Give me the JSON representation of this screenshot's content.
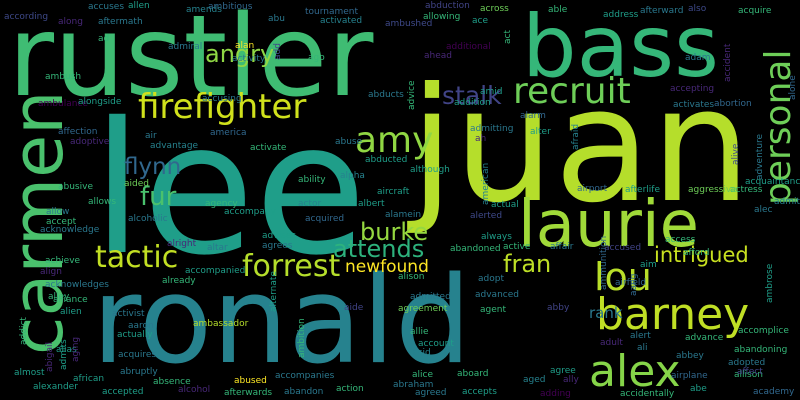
{
  "title_words": [
    {
      "text": "rustler",
      "color": "#3fbc73"
    },
    {
      "text": "bass",
      "color": "#35b779"
    },
    {
      "text": "lee",
      "color": "#1f9e89"
    },
    {
      "text": "juan",
      "color": "#b5de2b"
    },
    {
      "text": "ronald",
      "color": "#26828e"
    },
    {
      "text": "carmen",
      "color": "#4ac16d"
    },
    {
      "text": "laurie",
      "color": "#a0da39"
    },
    {
      "text": "firefighter",
      "color": "#d0e11c"
    },
    {
      "text": "recruit",
      "color": "#6ece58"
    },
    {
      "text": "personal",
      "color": "#6ece58"
    },
    {
      "text": "amy",
      "color": "#90d743"
    },
    {
      "text": "stalk",
      "color": "#414487"
    },
    {
      "text": "angry",
      "color": "#8fd744"
    },
    {
      "text": "flynn",
      "color": "#31688e"
    },
    {
      "text": "fur",
      "color": "#4ac16d"
    },
    {
      "text": "tactic",
      "color": "#c2df23"
    },
    {
      "text": "forrest",
      "color": "#b5de2b"
    },
    {
      "text": "burke",
      "color": "#95d840"
    },
    {
      "text": "attends",
      "color": "#2db27d"
    },
    {
      "text": "newfound",
      "color": "#fde725"
    },
    {
      "text": "fran",
      "color": "#bddf26"
    },
    {
      "text": "lou",
      "color": "#b8de29"
    },
    {
      "text": "intrigued",
      "color": "#c8e020"
    },
    {
      "text": "barney",
      "color": "#c0df25"
    },
    {
      "text": "alex",
      "color": "#86d549"
    },
    {
      "text": "rank",
      "color": "#2a788e"
    },
    {
      "text": "according",
      "color": "#3e4989"
    },
    {
      "text": "along",
      "color": "#482878"
    },
    {
      "text": "accuses",
      "color": "#2a788e"
    },
    {
      "text": "allen",
      "color": "#1f9e89"
    },
    {
      "text": "aftermath",
      "color": "#2a788e"
    },
    {
      "text": "ad",
      "color": "#35b779"
    },
    {
      "text": "ambitious",
      "color": "#31688e"
    },
    {
      "text": "amends",
      "color": "#26828e"
    },
    {
      "text": "abu",
      "color": "#2a788e"
    },
    {
      "text": "tournament",
      "color": "#31688e"
    },
    {
      "text": "activated",
      "color": "#26828e"
    },
    {
      "text": "ambushed",
      "color": "#3e4989"
    },
    {
      "text": "abduction",
      "color": "#414487"
    },
    {
      "text": "allowing",
      "color": "#35b779"
    },
    {
      "text": "across",
      "color": "#6ece58"
    },
    {
      "text": "ace",
      "color": "#1f9e89"
    },
    {
      "text": "act",
      "color": "#35b779"
    },
    {
      "text": "able",
      "color": "#35b779"
    },
    {
      "text": "address",
      "color": "#1f9e89"
    },
    {
      "text": "afterward",
      "color": "#2a788e"
    },
    {
      "text": "also",
      "color": "#3e4989"
    },
    {
      "text": "acquire",
      "color": "#35b779"
    },
    {
      "text": "adam",
      "color": "#2a788e"
    },
    {
      "text": "ahead",
      "color": "#482878"
    },
    {
      "text": "additional",
      "color": "#440154"
    },
    {
      "text": "abducts",
      "color": "#2a788e"
    },
    {
      "text": "advice",
      "color": "#35b779"
    },
    {
      "text": "amid",
      "color": "#1f9e89"
    },
    {
      "text": "addition",
      "color": "#1f9e89"
    },
    {
      "text": "accepting",
      "color": "#482878"
    },
    {
      "text": "abortion",
      "color": "#31688e"
    },
    {
      "text": "activates",
      "color": "#2a788e"
    },
    {
      "text": "alone",
      "color": "#31688e"
    },
    {
      "text": "admiral",
      "color": "#2a788e"
    },
    {
      "text": "alan",
      "color": "#fde725"
    },
    {
      "text": "ago",
      "color": "#35b779"
    },
    {
      "text": "activity",
      "color": "#2a788e"
    },
    {
      "text": "add",
      "color": "#3e4989"
    },
    {
      "text": "ambush",
      "color": "#35b779"
    },
    {
      "text": "ambulance",
      "color": "#440154"
    },
    {
      "text": "alongside",
      "color": "#1f9e89"
    },
    {
      "text": "accusing",
      "color": "#2a788e"
    },
    {
      "text": "air",
      "color": "#2a788e"
    },
    {
      "text": "america",
      "color": "#31688e"
    },
    {
      "text": "advantage",
      "color": "#26828e"
    },
    {
      "text": "adoptive",
      "color": "#482878"
    },
    {
      "text": "affection",
      "color": "#31688e"
    },
    {
      "text": "activate",
      "color": "#35b779"
    },
    {
      "text": "abuse",
      "color": "#2a788e"
    },
    {
      "text": "abducted",
      "color": "#1f9e89"
    },
    {
      "text": "alpha",
      "color": "#26828e"
    },
    {
      "text": "although",
      "color": "#1f9e89"
    },
    {
      "text": "admitting",
      "color": "#2a788e"
    },
    {
      "text": "ah",
      "color": "#482878"
    },
    {
      "text": "alarm",
      "color": "#31688e"
    },
    {
      "text": "alter",
      "color": "#1f9e89"
    },
    {
      "text": "afraid",
      "color": "#26828e"
    },
    {
      "text": "alive",
      "color": "#3e4989"
    },
    {
      "text": "adventure",
      "color": "#2a788e"
    },
    {
      "text": "acquaintance",
      "color": "#1f9e89"
    },
    {
      "text": "actress",
      "color": "#35b779"
    },
    {
      "text": "aggressive",
      "color": "#6ece58"
    },
    {
      "text": "afterlife",
      "color": "#1f9e89"
    },
    {
      "text": "airport",
      "color": "#31688e"
    },
    {
      "text": "american",
      "color": "#26828e"
    },
    {
      "text": "actual",
      "color": "#1f9e89"
    },
    {
      "text": "aircraft",
      "color": "#1f9e89"
    },
    {
      "text": "albert",
      "color": "#1f9e89"
    },
    {
      "text": "ability",
      "color": "#35b779"
    },
    {
      "text": "aided",
      "color": "#6ece58"
    },
    {
      "text": "abusive",
      "color": "#35b779"
    },
    {
      "text": "allows",
      "color": "#35b779"
    },
    {
      "text": "allow",
      "color": "#2a788e"
    },
    {
      "text": "accept",
      "color": "#35b779"
    },
    {
      "text": "acknowledge",
      "color": "#2a788e"
    },
    {
      "text": "alcoholic",
      "color": "#2a788e"
    },
    {
      "text": "agency",
      "color": "#35b779"
    },
    {
      "text": "actor",
      "color": "#26828e"
    },
    {
      "text": "acquired",
      "color": "#31688e"
    },
    {
      "text": "alamein",
      "color": "#2a788e"
    },
    {
      "text": "alerted",
      "color": "#3e4989"
    },
    {
      "text": "accompany",
      "color": "#1f9e89"
    },
    {
      "text": "alright",
      "color": "#482878"
    },
    {
      "text": "altar",
      "color": "#2a788e"
    },
    {
      "text": "advises",
      "color": "#1f9e89"
    },
    {
      "text": "agrees",
      "color": "#2a788e"
    },
    {
      "text": "always",
      "color": "#1f9e89"
    },
    {
      "text": "active",
      "color": "#35b779"
    },
    {
      "text": "affair",
      "color": "#2a788e"
    },
    {
      "text": "abandoned",
      "color": "#35b779"
    },
    {
      "text": "accused",
      "color": "#414487"
    },
    {
      "text": "access",
      "color": "#35b779"
    },
    {
      "text": "afford",
      "color": "#35b779"
    },
    {
      "text": "admit",
      "color": "#26828e"
    },
    {
      "text": "alec",
      "color": "#2a788e"
    },
    {
      "text": "aim",
      "color": "#1f9e89"
    },
    {
      "text": "aang",
      "color": "#31688e"
    },
    {
      "text": "ammunition",
      "color": "#31688e"
    },
    {
      "text": "airfield",
      "color": "#31688e"
    },
    {
      "text": "achieve",
      "color": "#35b779"
    },
    {
      "text": "align",
      "color": "#482878"
    },
    {
      "text": "acknowledges",
      "color": "#2a788e"
    },
    {
      "text": "alley",
      "color": "#35b779"
    },
    {
      "text": "alliance",
      "color": "#35b779"
    },
    {
      "text": "alien",
      "color": "#1f9e89"
    },
    {
      "text": "activist",
      "color": "#2a788e"
    },
    {
      "text": "ambassador",
      "color": "#b5de2b"
    },
    {
      "text": "aaron",
      "color": "#2a788e"
    },
    {
      "text": "actually",
      "color": "#1f9e89"
    },
    {
      "text": "alison",
      "color": "#35b779"
    },
    {
      "text": "adopt",
      "color": "#2a788e"
    },
    {
      "text": "admitted",
      "color": "#2a788e"
    },
    {
      "text": "advanced",
      "color": "#2a788e"
    },
    {
      "text": "aide",
      "color": "#414487"
    },
    {
      "text": "agreement",
      "color": "#6ece58"
    },
    {
      "text": "agent",
      "color": "#35b779"
    },
    {
      "text": "abby",
      "color": "#414487"
    },
    {
      "text": "allie",
      "color": "#35b779"
    },
    {
      "text": "alert",
      "color": "#2a788e"
    },
    {
      "text": "advance",
      "color": "#35b779"
    },
    {
      "text": "accomplice",
      "color": "#35b779"
    },
    {
      "text": "ali",
      "color": "#2a788e"
    },
    {
      "text": "abbey",
      "color": "#2a788e"
    },
    {
      "text": "abandoning",
      "color": "#35b779"
    },
    {
      "text": "adopted",
      "color": "#2a788e"
    },
    {
      "text": "allison",
      "color": "#35b779"
    },
    {
      "text": "academy",
      "color": "#31688e"
    },
    {
      "text": "affect",
      "color": "#414487"
    },
    {
      "text": "abe",
      "color": "#1f9e89"
    },
    {
      "text": "accidentally",
      "color": "#35b779"
    },
    {
      "text": "airplane",
      "color": "#31688e"
    },
    {
      "text": "agree",
      "color": "#1f9e89"
    },
    {
      "text": "ally",
      "color": "#482878"
    },
    {
      "text": "aged",
      "color": "#26828e"
    },
    {
      "text": "adding",
      "color": "#440154"
    },
    {
      "text": "abraham",
      "color": "#2a788e"
    },
    {
      "text": "alice",
      "color": "#35b779"
    },
    {
      "text": "aboard",
      "color": "#35b779"
    },
    {
      "text": "accepts",
      "color": "#1f9e89"
    },
    {
      "text": "agreed",
      "color": "#2a788e"
    },
    {
      "text": "action",
      "color": "#35b779"
    },
    {
      "text": "abandon",
      "color": "#2a788e"
    },
    {
      "text": "alcohol",
      "color": "#482878"
    },
    {
      "text": "absence",
      "color": "#35b779"
    },
    {
      "text": "accepted",
      "color": "#1f9e89"
    },
    {
      "text": "abused",
      "color": "#fde725"
    },
    {
      "text": "accompanies",
      "color": "#2a788e"
    },
    {
      "text": "afterwards",
      "color": "#35b779"
    },
    {
      "text": "abruptly",
      "color": "#2a788e"
    },
    {
      "text": "african",
      "color": "#1f9e89"
    },
    {
      "text": "alexander",
      "color": "#1f9e89"
    },
    {
      "text": "almost",
      "color": "#1f9e89"
    },
    {
      "text": "addict",
      "color": "#35b779"
    },
    {
      "text": "alias",
      "color": "#1f9e89"
    },
    {
      "text": "abigail",
      "color": "#482878"
    },
    {
      "text": "admits",
      "color": "#1f9e89"
    },
    {
      "text": "aging",
      "color": "#482878"
    },
    {
      "text": "acquires",
      "color": "#2a788e"
    },
    {
      "text": "ambition",
      "color": "#35b779"
    },
    {
      "text": "account",
      "color": "#1f9e89"
    },
    {
      "text": "acid",
      "color": "#26828e"
    },
    {
      "text": "adult",
      "color": "#482878"
    },
    {
      "text": "alternate",
      "color": "#1f9e89"
    },
    {
      "text": "accompanied",
      "color": "#1f9e89"
    },
    {
      "text": "already",
      "color": "#35b779"
    },
    {
      "text": "ambrose",
      "color": "#1f9e89"
    },
    {
      "text": "accident",
      "color": "#482878"
    }
  ]
}
